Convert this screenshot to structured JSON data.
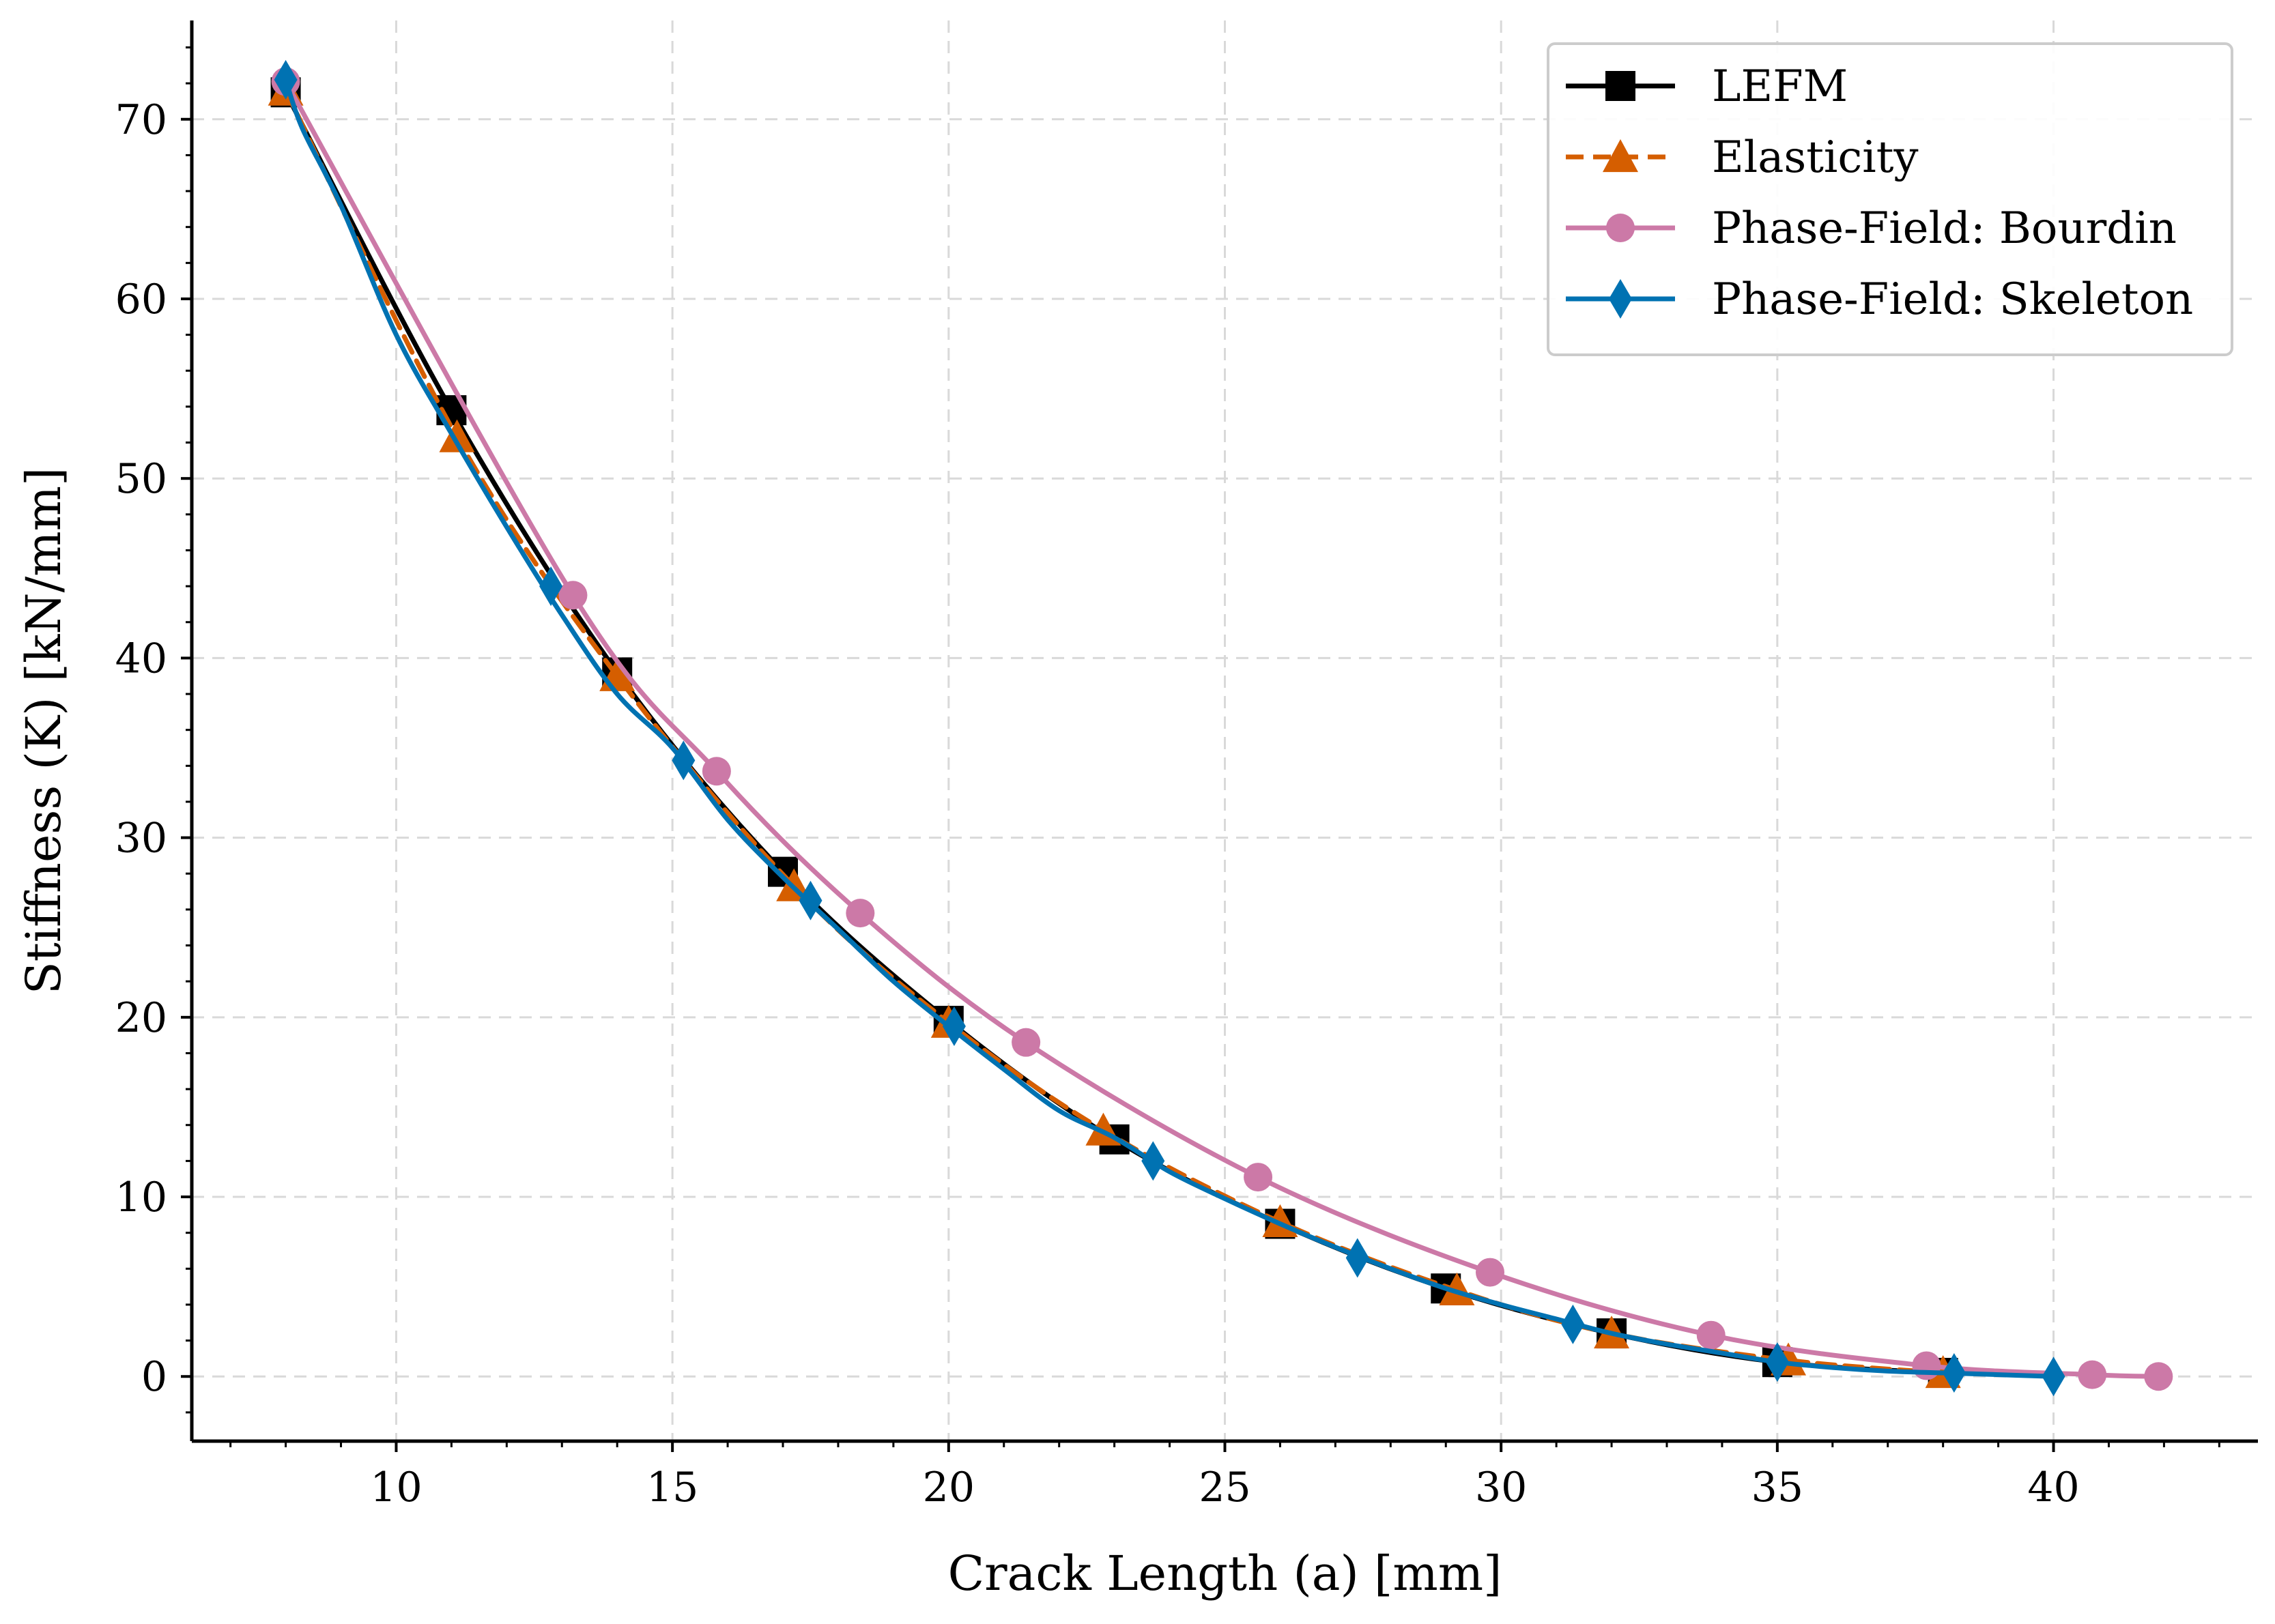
{
  "chart_data": {
    "type": "line",
    "title": "",
    "xlabel": "Crack Length (a) [mm]",
    "ylabel": "Stiffness (K) [kN/mm]",
    "xlim": [
      6.3,
      43.7
    ],
    "ylim": [
      -3.6,
      75.5
    ],
    "xticks": [
      10,
      15,
      20,
      25,
      30,
      35,
      40
    ],
    "yticks": [
      0,
      10,
      20,
      30,
      40,
      50,
      60,
      70
    ],
    "xminor_step": 1,
    "yminor_step": 2,
    "grid": true,
    "legend_position": "top-right",
    "series": [
      {
        "name": "LEFM",
        "color": "#000000",
        "line_style": "solid",
        "marker": "square",
        "x": [
          8,
          11,
          14,
          17,
          20,
          23,
          26,
          29,
          32,
          35,
          38
        ],
        "y": [
          71.5,
          53.8,
          39.2,
          28.1,
          19.8,
          13.2,
          8.5,
          4.9,
          2.4,
          0.8,
          0.2
        ]
      },
      {
        "name": "Elasticity",
        "color": "#d55e00",
        "line_style": "dashed",
        "marker": "triangle",
        "x": [
          8,
          11.1,
          14.0,
          17.2,
          20.0,
          22.8,
          26.0,
          29.2,
          32.0,
          35.2,
          38.0
        ],
        "y": [
          71.6,
          52.3,
          39.0,
          27.3,
          19.7,
          13.7,
          8.6,
          4.8,
          2.4,
          0.9,
          0.2
        ]
      },
      {
        "name": "Phase-Field: Bourdin",
        "color": "#cc79a7",
        "line_style": "solid",
        "marker": "circle",
        "x": [
          8,
          13.2,
          15.8,
          18.4,
          21.4,
          25.6,
          29.8,
          33.8,
          37.7,
          40.7,
          41.9
        ],
        "y": [
          72.1,
          43.5,
          33.7,
          25.8,
          18.6,
          11.1,
          5.8,
          2.3,
          0.6,
          0.1,
          0.0
        ]
      },
      {
        "name": "Phase-Field: Skeleton",
        "color": "#0072b2",
        "line_style": "solid",
        "marker": "diamond",
        "x": [
          8,
          12.8,
          15.2,
          17.5,
          20.1,
          23.7,
          27.4,
          31.3,
          35.0,
          38.2,
          40.0
        ],
        "y": [
          72.2,
          44.0,
          34.3,
          26.5,
          19.5,
          12.0,
          6.6,
          2.9,
          0.8,
          0.2,
          0.0
        ],
        "dense_x": [
          8,
          8.3,
          9.0,
          10.0,
          11.0,
          12.0,
          13.0,
          14.0,
          15.0,
          16.0,
          17.0,
          18.0,
          19.0,
          20.0,
          21.0,
          22.0,
          23.0,
          24.0,
          25.0,
          26.0,
          27.0,
          28.0,
          29.0,
          30.0,
          31.0,
          32.0,
          33.0,
          34.0,
          35.0,
          36.0,
          37.0,
          38.0,
          39.0,
          40.0
        ],
        "dense_y": [
          72.2,
          69.5,
          65.2,
          58.0,
          52.5,
          47.3,
          42.4,
          38.0,
          35.0,
          31.0,
          27.8,
          24.9,
          22.0,
          19.5,
          17.1,
          14.8,
          13.3,
          11.4,
          9.9,
          8.5,
          7.2,
          6.0,
          4.9,
          4.0,
          3.2,
          2.4,
          1.8,
          1.3,
          0.8,
          0.5,
          0.3,
          0.2,
          0.1,
          0.0
        ]
      }
    ]
  }
}
